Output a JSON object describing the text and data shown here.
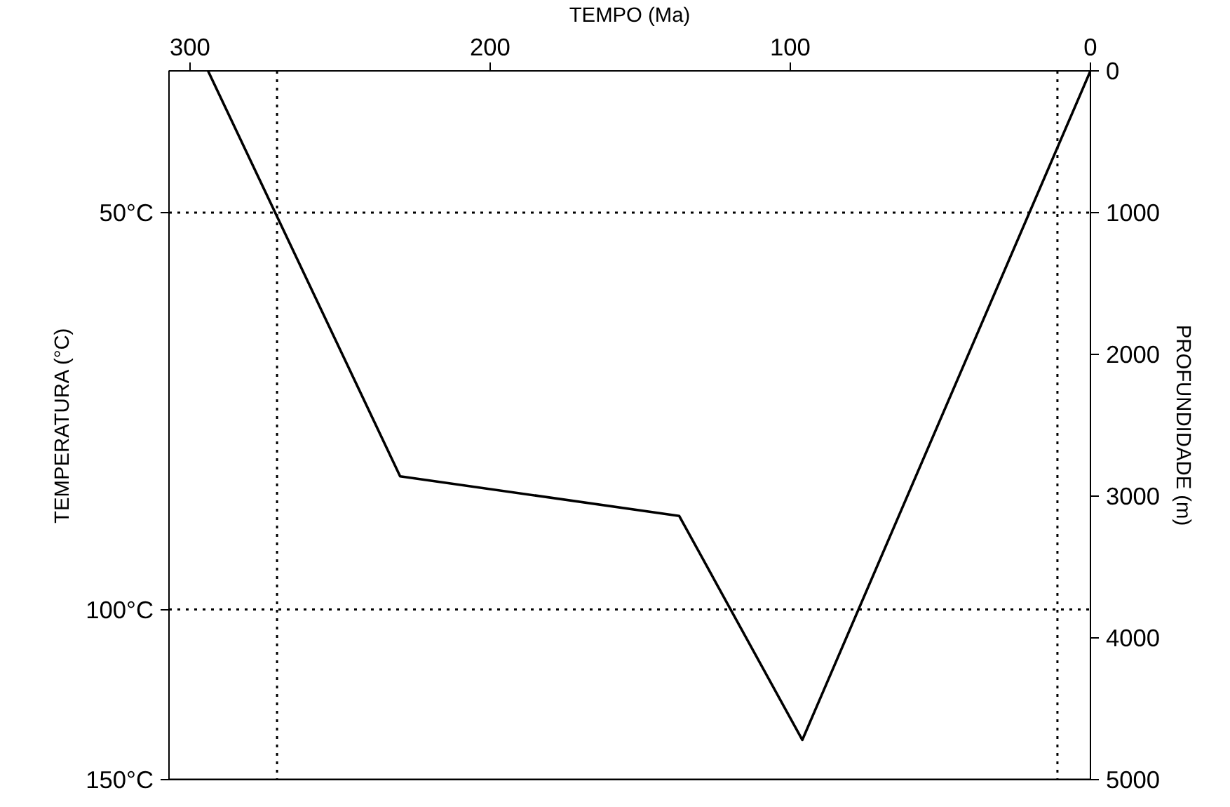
{
  "chart_data": {
    "type": "line",
    "xlabel": "TEMPO (Ma)",
    "ylabel": "PROFUNDIDADE (m)",
    "annotations": [
      "TEMPERATURA (°C)"
    ],
    "xlim": [
      307,
      0
    ],
    "xticks": [
      300,
      200,
      100,
      0
    ],
    "ylim": [
      5000,
      0
    ],
    "yticks": [
      0,
      1000,
      2000,
      3000,
      4000,
      5000
    ],
    "series": [
      {
        "color": "#000000",
        "x": [
          294,
          230,
          137,
          96,
          0
        ],
        "values": [
          0,
          2860,
          3140,
          4720,
          0
        ]
      }
    ],
    "ref_lines": [
      {
        "axis": "y",
        "value": 1000,
        "label": "50°C",
        "line_style": "dotted",
        "color": "#000000"
      },
      {
        "axis": "y",
        "value": 3800,
        "label": "100°C",
        "line_style": "dotted",
        "color": "#000000"
      },
      {
        "axis": "y",
        "value": 5000,
        "label": "150°C",
        "line_style": "solid",
        "color": "#000000"
      },
      {
        "axis": "x",
        "value": 271,
        "line_style": "dotted",
        "color": "#000000"
      },
      {
        "axis": "x",
        "value": 11,
        "line_style": "dotted",
        "color": "#000000"
      }
    ],
    "grid": false,
    "marker": "none",
    "line_style": "solid"
  }
}
